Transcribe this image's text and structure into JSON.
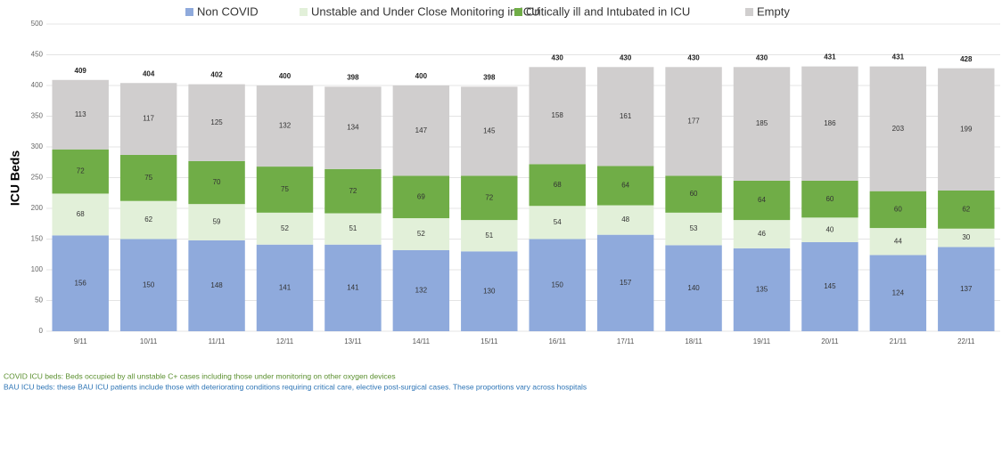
{
  "chart_data": {
    "type": "stacked_bar",
    "y_label": "ICU Beds",
    "categories": [
      "9/11",
      "10/11",
      "11/11",
      "12/11",
      "13/11",
      "14/11",
      "15/11",
      "16/11",
      "17/11",
      "18/11",
      "19/11",
      "20/11",
      "21/11",
      "22/11"
    ],
    "series": [
      {
        "name": "Non COVID",
        "color": "#8faadc",
        "values": [
          156,
          150,
          148,
          141,
          141,
          132,
          130,
          150,
          157,
          140,
          135,
          145,
          124,
          137
        ]
      },
      {
        "name": "Unstable and Under Close Monitoring in ICU",
        "color": "#e2f0d9",
        "values": [
          68,
          62,
          59,
          52,
          51,
          52,
          51,
          54,
          48,
          53,
          46,
          40,
          44,
          30
        ]
      },
      {
        "name": "Critically ill and Intubated in ICU",
        "color": "#70ad47",
        "values": [
          72,
          75,
          70,
          75,
          72,
          69,
          72,
          68,
          64,
          60,
          64,
          60,
          60,
          62
        ]
      },
      {
        "name": "Empty",
        "color": "#d0cece",
        "values": [
          113,
          117,
          125,
          132,
          134,
          147,
          145,
          158,
          161,
          177,
          185,
          186,
          203,
          199
        ]
      }
    ],
    "totals": [
      409,
      404,
      402,
      400,
      398,
      400,
      398,
      430,
      430,
      430,
      430,
      431,
      431,
      428
    ],
    "ylim": [
      0,
      500
    ],
    "yticks": [
      0,
      50,
      100,
      150,
      200,
      250,
      300,
      350,
      400,
      450,
      500
    ],
    "grid": true,
    "legend": "top",
    "notes": [
      {
        "text": "COVID ICU beds: Beds occupied by all unstable C+ cases including those under monitoring on other oxygen devices",
        "color": "#5a8f2e"
      },
      {
        "text": "BAU ICU beds: these BAU ICU patients include those with deteriorating conditions requiring critical care, elective post-surgical cases. These proportions vary across hospitals",
        "color": "#2e75b6"
      }
    ]
  }
}
